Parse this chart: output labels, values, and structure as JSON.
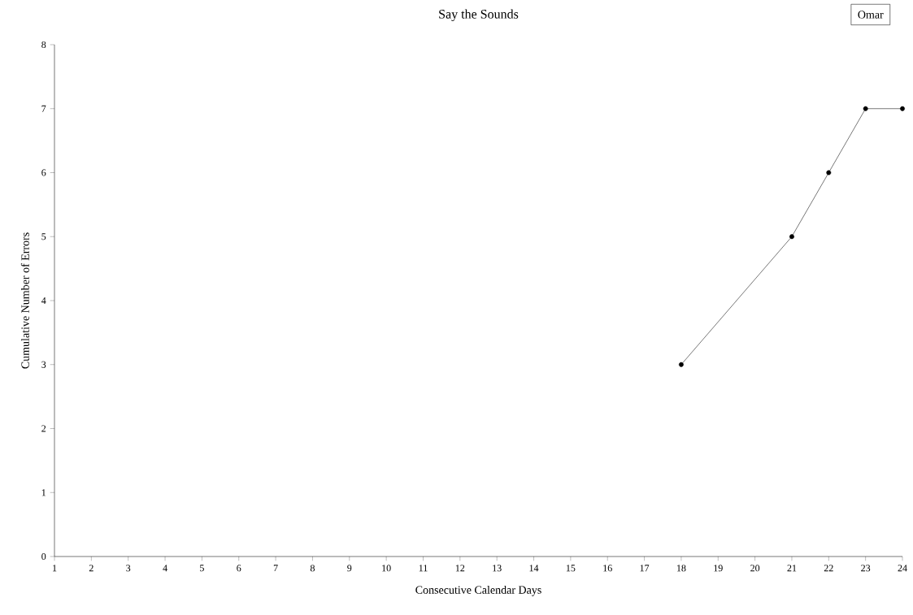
{
  "chart_data": {
    "type": "line",
    "title": "Say the Sounds",
    "xlabel": "Consecutive Calendar Days",
    "ylabel": "Cumulative Number of Errors",
    "annotations": [
      "Omar"
    ],
    "x": [
      18,
      21,
      22,
      23,
      24
    ],
    "series": [
      {
        "color": "#000000",
        "values": [
          3,
          5,
          6,
          7,
          7
        ]
      }
    ],
    "xlim": [
      1,
      24
    ],
    "xticks": [
      1,
      2,
      3,
      4,
      5,
      6,
      7,
      8,
      9,
      10,
      11,
      12,
      13,
      14,
      15,
      16,
      17,
      18,
      19,
      20,
      21,
      22,
      23,
      24
    ],
    "ylim": [
      0,
      8
    ],
    "yticks": [
      0,
      1,
      2,
      3,
      4,
      5,
      6,
      7,
      8
    ],
    "grid": false,
    "marker": "circle",
    "line_style": "solid"
  }
}
